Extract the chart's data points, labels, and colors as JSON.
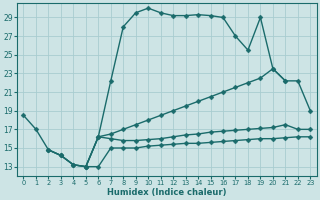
{
  "xlabel": "Humidex (Indice chaleur)",
  "xlim": [
    -0.5,
    23.5
  ],
  "ylim": [
    12.0,
    30.5
  ],
  "yticks": [
    13,
    15,
    17,
    19,
    21,
    23,
    25,
    27,
    29
  ],
  "xticks": [
    0,
    1,
    2,
    3,
    4,
    5,
    6,
    7,
    8,
    9,
    10,
    11,
    12,
    13,
    14,
    15,
    16,
    17,
    18,
    19,
    20,
    21,
    22,
    23
  ],
  "bg_color": "#cde4e5",
  "grid_color": "#a8cdd0",
  "line_color": "#1a6b6b",
  "lines": [
    {
      "x": [
        0,
        1,
        2,
        3,
        4,
        5,
        6,
        7,
        8,
        9,
        10,
        11,
        12,
        13,
        14,
        15,
        16,
        17,
        18,
        19,
        20,
        21
      ],
      "y": [
        18.5,
        17.0,
        14.8,
        14.2,
        13.2,
        13.0,
        16.2,
        22.2,
        28.0,
        29.5,
        30.0,
        29.5,
        29.2,
        29.2,
        29.3,
        29.2,
        29.0,
        27.0,
        25.5,
        29.0,
        23.5,
        22.2
      ]
    },
    {
      "x": [
        5,
        6,
        7,
        8,
        9,
        10,
        11,
        12,
        13,
        14,
        15,
        16,
        17,
        18,
        19,
        20,
        21,
        22,
        23
      ],
      "y": [
        13.0,
        16.2,
        16.5,
        17.0,
        17.5,
        18.0,
        18.5,
        19.0,
        19.5,
        20.0,
        20.5,
        21.0,
        21.5,
        22.0,
        22.5,
        23.5,
        22.2,
        22.2,
        19.0
      ]
    },
    {
      "x": [
        2,
        3,
        4,
        5,
        6,
        7,
        8,
        9,
        10,
        11,
        12,
        13,
        14,
        15,
        16,
        17,
        18,
        19,
        20,
        21,
        22,
        23
      ],
      "y": [
        14.8,
        14.2,
        13.2,
        13.0,
        16.2,
        16.0,
        15.8,
        15.8,
        15.9,
        16.0,
        16.2,
        16.4,
        16.5,
        16.7,
        16.8,
        16.9,
        17.0,
        17.1,
        17.2,
        17.5,
        17.0,
        17.0
      ]
    },
    {
      "x": [
        2,
        3,
        4,
        5,
        6,
        7,
        8,
        9,
        10,
        11,
        12,
        13,
        14,
        15,
        16,
        17,
        18,
        19,
        20,
        21,
        22,
        23
      ],
      "y": [
        14.8,
        14.2,
        13.2,
        13.0,
        13.0,
        15.0,
        15.0,
        15.0,
        15.2,
        15.3,
        15.4,
        15.5,
        15.5,
        15.6,
        15.7,
        15.8,
        15.9,
        16.0,
        16.0,
        16.1,
        16.2,
        16.2
      ]
    }
  ]
}
